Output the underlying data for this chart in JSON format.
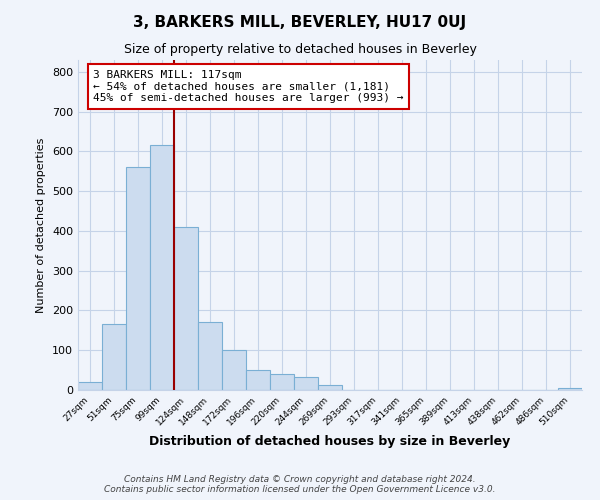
{
  "title": "3, BARKERS MILL, BEVERLEY, HU17 0UJ",
  "subtitle": "Size of property relative to detached houses in Beverley",
  "xlabel": "Distribution of detached houses by size in Beverley",
  "ylabel": "Number of detached properties",
  "bar_labels": [
    "27sqm",
    "51sqm",
    "75sqm",
    "99sqm",
    "124sqm",
    "148sqm",
    "172sqm",
    "196sqm",
    "220sqm",
    "244sqm",
    "269sqm",
    "293sqm",
    "317sqm",
    "341sqm",
    "365sqm",
    "389sqm",
    "413sqm",
    "438sqm",
    "462sqm",
    "486sqm",
    "510sqm"
  ],
  "bar_values": [
    20,
    165,
    560,
    615,
    410,
    170,
    100,
    50,
    40,
    33,
    13,
    0,
    0,
    0,
    0,
    0,
    0,
    0,
    0,
    0,
    5
  ],
  "bar_color": "#ccdcef",
  "bar_edge_color": "#7aafd4",
  "property_line_color": "#990000",
  "annotation_title": "3 BARKERS MILL: 117sqm",
  "annotation_line1": "← 54% of detached houses are smaller (1,181)",
  "annotation_line2": "45% of semi-detached houses are larger (993) →",
  "annotation_box_facecolor": "#ffffff",
  "annotation_box_edgecolor": "#cc0000",
  "ylim": [
    0,
    830
  ],
  "yticks": [
    0,
    100,
    200,
    300,
    400,
    500,
    600,
    700,
    800
  ],
  "footer1": "Contains HM Land Registry data © Crown copyright and database right 2024.",
  "footer2": "Contains public sector information licensed under the Open Government Licence v3.0.",
  "background_color": "#f0f4fb",
  "grid_color": "#c5d3e8"
}
